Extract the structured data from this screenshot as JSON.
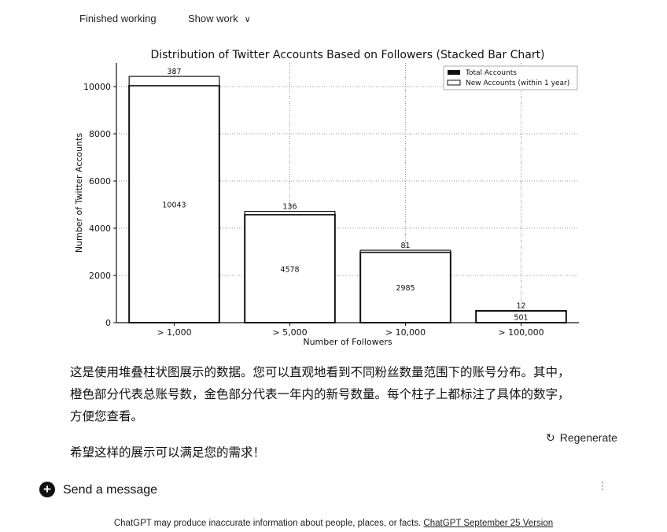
{
  "header": {
    "finished_label": "Finished working",
    "show_work_label": "Show work",
    "chevron_icon": "chevron-down-icon"
  },
  "chart_data": {
    "type": "bar",
    "stacked": true,
    "title": "Distribution of Twitter Accounts Based on Followers (Stacked Bar Chart)",
    "xlabel": "Number of Followers",
    "ylabel": "Number of Twitter Accounts",
    "categories": [
      "> 1,000",
      "> 5,000",
      "> 10,000",
      "> 100,000"
    ],
    "series": [
      {
        "name": "Total Accounts",
        "values": [
          10043,
          4578,
          2985,
          501
        ]
      },
      {
        "name": "New Accounts (within 1 year)",
        "values": [
          387,
          136,
          81,
          12
        ]
      }
    ],
    "ylim": [
      0,
      11000
    ],
    "yticks": [
      0,
      2000,
      4000,
      6000,
      8000,
      10000
    ],
    "grid": true,
    "legend": "top-right"
  },
  "message": {
    "paragraph1": "这是使用堆叠柱状图展示的数据。您可以直观地看到不同粉丝数量范围下的账号分布。其中，橙色部分代表总账号数，金色部分代表一年内的新号数量。每个柱子上都标注了具体的数字，方便您查看。",
    "paragraph2": "希望这样的展示可以满足您的需求！"
  },
  "regenerate_label": "Regenerate",
  "composer": {
    "placeholder": "Send a message"
  },
  "footer": {
    "text": "ChatGPT may produce inaccurate information about people, places, or facts. ",
    "link": "ChatGPT September 25 Version"
  }
}
